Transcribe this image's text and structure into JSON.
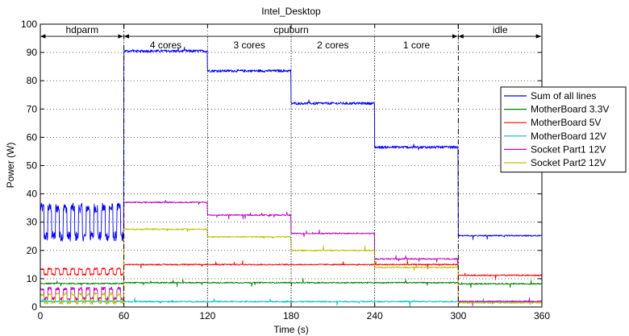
{
  "chart_data": {
    "type": "line",
    "title": "Intel_Desktop",
    "xlabel": "Time (s)",
    "ylabel": "Power (W)",
    "xlim": [
      0,
      360
    ],
    "ylim": [
      0,
      100
    ],
    "xticks": [
      0,
      60,
      120,
      180,
      240,
      300,
      360
    ],
    "yticks": [
      0,
      10,
      20,
      30,
      40,
      50,
      60,
      70,
      80,
      90,
      100
    ],
    "grid": true,
    "legend_position": "right",
    "phases": [
      {
        "label": "hdparm",
        "start": 0,
        "end": 60
      },
      {
        "label": "cpuburn",
        "start": 60,
        "end": 300
      },
      {
        "label": "idle",
        "start": 300,
        "end": 360
      }
    ],
    "subphases": [
      {
        "label": "4 cores",
        "start": 60,
        "end": 120
      },
      {
        "label": "3 cores",
        "start": 120,
        "end": 180
      },
      {
        "label": "2 cores",
        "start": 180,
        "end": 240
      },
      {
        "label": "1 core",
        "start": 240,
        "end": 300
      }
    ],
    "series": [
      {
        "name": "Sum of all lines",
        "color": "#0000ff",
        "segments": [
          {
            "start": 0,
            "end": 60,
            "pattern": "square",
            "low": 25,
            "high": 35,
            "period": 5.5
          },
          {
            "start": 60,
            "end": 120,
            "level": 90.5
          },
          {
            "start": 120,
            "end": 180,
            "level": 83.5
          },
          {
            "start": 180,
            "end": 240,
            "level": 72
          },
          {
            "start": 240,
            "end": 300,
            "level": 56.5
          },
          {
            "start": 300,
            "end": 360,
            "level": 25.2
          }
        ]
      },
      {
        "name": "MotherBoard 3.3V",
        "color": "#008000",
        "segments": [
          {
            "start": 0,
            "end": 60,
            "level": 8.3
          },
          {
            "start": 60,
            "end": 300,
            "level": 8.6
          },
          {
            "start": 300,
            "end": 360,
            "level": 8.2
          }
        ]
      },
      {
        "name": "MotherBoard 5V",
        "color": "#ff0000",
        "segments": [
          {
            "start": 0,
            "end": 60,
            "pattern": "square",
            "low": 11.5,
            "high": 13.5,
            "period": 5.5
          },
          {
            "start": 60,
            "end": 300,
            "level": 15
          },
          {
            "start": 300,
            "end": 360,
            "level": 11.2
          }
        ]
      },
      {
        "name": "MotherBoard 12V",
        "color": "#00bfbf",
        "segments": [
          {
            "start": 0,
            "end": 60,
            "level": 2
          },
          {
            "start": 60,
            "end": 300,
            "level": 1.9
          },
          {
            "start": 300,
            "end": 360,
            "level": 1.8
          }
        ]
      },
      {
        "name": "Socket Part1 12V",
        "color": "#bf00bf",
        "segments": [
          {
            "start": 0,
            "end": 60,
            "pattern": "square",
            "low": 3,
            "high": 6.5,
            "period": 5.5
          },
          {
            "start": 60,
            "end": 120,
            "level": 37
          },
          {
            "start": 120,
            "end": 180,
            "level": 32.5
          },
          {
            "start": 180,
            "end": 240,
            "level": 26
          },
          {
            "start": 240,
            "end": 300,
            "level": 17
          },
          {
            "start": 300,
            "end": 360,
            "level": 2
          }
        ]
      },
      {
        "name": "Socket Part2 12V",
        "color": "#bfbf00",
        "segments": [
          {
            "start": 0,
            "end": 60,
            "pattern": "square",
            "low": 1.5,
            "high": 4.5,
            "period": 5.5
          },
          {
            "start": 60,
            "end": 120,
            "level": 27.5
          },
          {
            "start": 120,
            "end": 180,
            "level": 24.8
          },
          {
            "start": 180,
            "end": 240,
            "level": 20
          },
          {
            "start": 240,
            "end": 300,
            "level": 14
          },
          {
            "start": 300,
            "end": 360,
            "level": 1.5
          }
        ]
      }
    ]
  }
}
